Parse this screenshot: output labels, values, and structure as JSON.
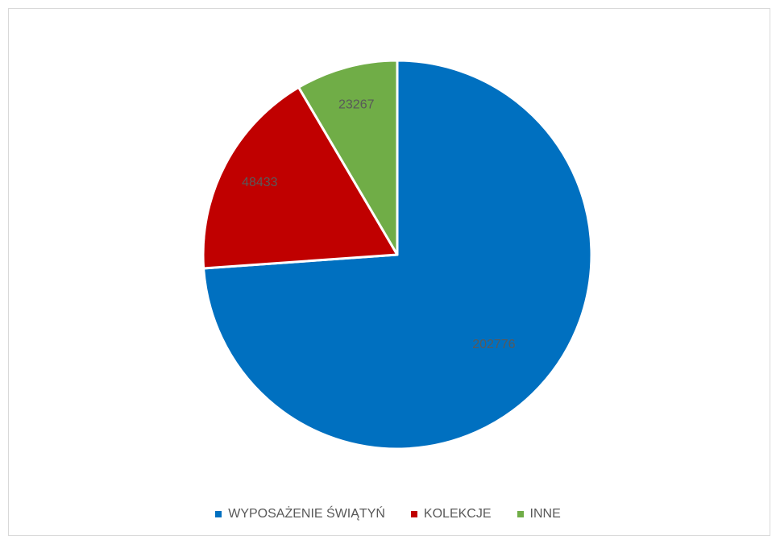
{
  "chart_data": {
    "type": "pie",
    "title": "",
    "categories": [
      "WYPOSAŻENIE ŚWIĄTYŃ",
      "KOLEKCJE",
      "INNE"
    ],
    "values": [
      202776,
      48433,
      23267
    ],
    "colors": [
      "#0070C0",
      "#C00000",
      "#70AD47"
    ],
    "start_angle_deg": 0,
    "direction": "clockwise",
    "data_labels": [
      "202776",
      "48433",
      "23267"
    ],
    "data_label_color": "#595959",
    "legend_position": "bottom"
  }
}
